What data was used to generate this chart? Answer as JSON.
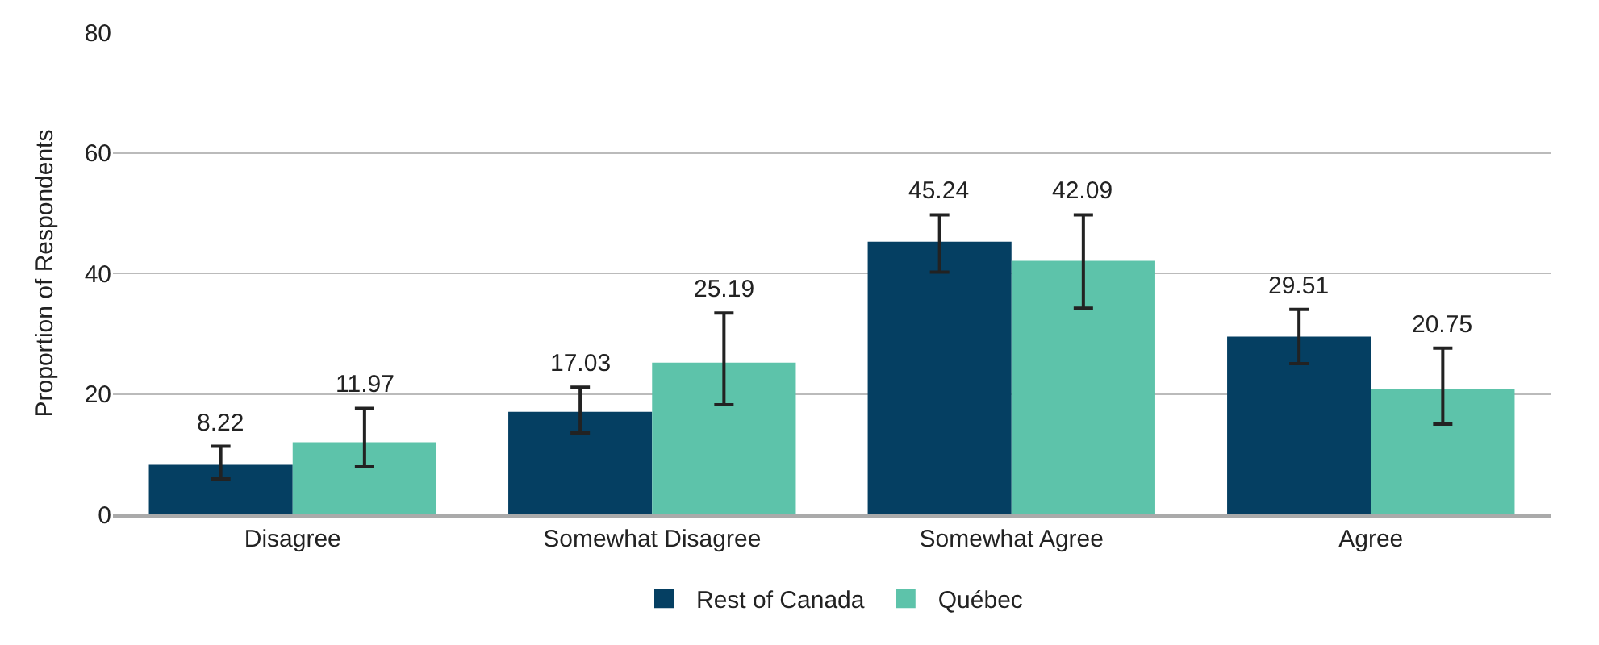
{
  "chart_data": {
    "type": "bar",
    "ylabel": "Proportion of Respondents",
    "categories": [
      "Disagree",
      "Somewhat Disagree",
      "Somewhat Agree",
      "Agree"
    ],
    "series": [
      {
        "name": "Rest of Canada",
        "color": "#053f62",
        "values": [
          8.22,
          17.03,
          45.24,
          29.51
        ],
        "errors": [
          [
            5.9,
            11.3
          ],
          [
            13.5,
            21.1
          ],
          [
            40.2,
            49.7
          ],
          [
            25.0,
            34.0
          ]
        ]
      },
      {
        "name": "Québec",
        "color": "#5dc3aa",
        "values": [
          11.97,
          25.19,
          42.09,
          20.75
        ],
        "errors": [
          [
            7.9,
            17.6
          ],
          [
            18.2,
            33.4
          ],
          [
            34.2,
            49.7
          ],
          [
            15.0,
            27.6
          ]
        ]
      }
    ],
    "ylim": [
      0,
      80
    ],
    "yticks": [
      0,
      20,
      40,
      60,
      80
    ],
    "grid": "y",
    "legend": "bottom",
    "data_labels": true
  }
}
